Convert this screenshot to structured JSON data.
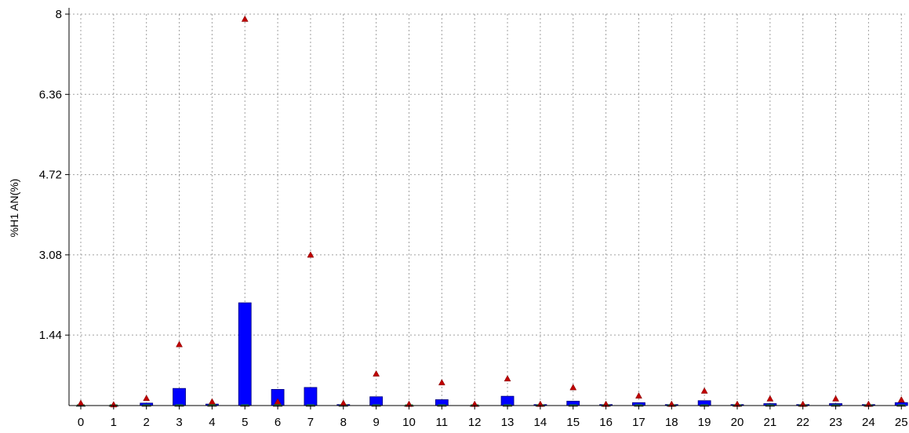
{
  "chart_data": {
    "type": "box",
    "ylabel": "%H1 AN(%)",
    "xlabel": "",
    "ylim": [
      0,
      8
    ],
    "yticks": [
      "1.44",
      "3.08",
      "4.72",
      "6.36",
      "8"
    ],
    "grid": true,
    "categories": [
      "0",
      "1",
      "2",
      "3",
      "4",
      "5",
      "6",
      "7",
      "8",
      "9",
      "10",
      "11",
      "12",
      "13",
      "14",
      "15",
      "16",
      "17",
      "18",
      "19",
      "20",
      "21",
      "22",
      "23",
      "24",
      "25"
    ],
    "box_low": [
      0,
      0,
      0,
      0,
      0,
      0,
      0,
      0,
      0,
      0,
      0,
      0,
      0,
      0,
      0,
      0,
      0,
      0,
      0,
      0,
      0,
      0,
      0,
      0,
      0,
      0
    ],
    "box_high": [
      0,
      0,
      0.05,
      0.35,
      0.03,
      2.1,
      0.33,
      0.37,
      0.02,
      0.18,
      0.01,
      0.12,
      0.01,
      0.19,
      0.02,
      0.09,
      0.02,
      0.06,
      0.02,
      0.1,
      0.02,
      0.04,
      0.02,
      0.04,
      0.02,
      0.06
    ],
    "max_marker": [
      0.05,
      0.02,
      0.15,
      1.25,
      0.08,
      7.9,
      0.08,
      3.08,
      0.05,
      0.65,
      0.03,
      0.47,
      0.03,
      0.55,
      0.03,
      0.37,
      0.03,
      0.2,
      0.03,
      0.3,
      0.03,
      0.14,
      0.03,
      0.14,
      0.03,
      0.12
    ],
    "colors": {
      "box": "#0000ff",
      "max_marker": "#c00000",
      "median": "#1a8a3a",
      "grid": "#a0a0a0"
    }
  }
}
